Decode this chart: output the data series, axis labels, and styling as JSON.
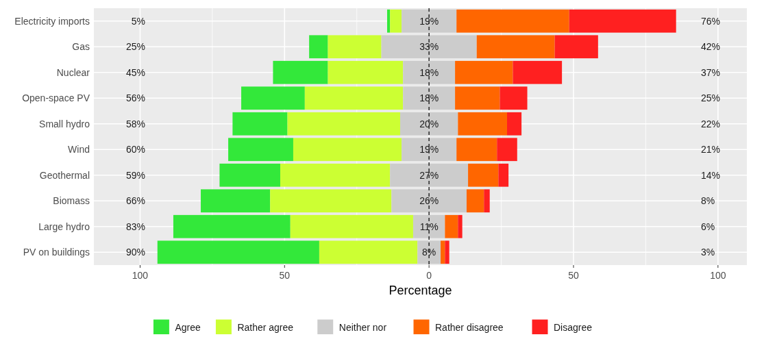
{
  "chart_data": {
    "type": "bar",
    "orientation": "horizontal",
    "xlabel": "Percentage",
    "categories": [
      "Electricity imports",
      "Gas",
      "Nuclear",
      "Open-space PV",
      "Small hydro",
      "Wind",
      "Geothermal",
      "Biomass",
      "Large hydro",
      "PV on buildings"
    ],
    "xlim": [
      -116,
      110
    ],
    "xticks": [
      {
        "value": -100,
        "label": "100"
      },
      {
        "value": -75,
        "label": null
      },
      {
        "value": -50,
        "label": "50"
      },
      {
        "value": -25,
        "label": null
      },
      0,
      {
        "value": 25,
        "label": null
      },
      50,
      {
        "value": 75,
        "label": null
      },
      100
    ],
    "grid": true,
    "legend": "bottom",
    "series": [
      {
        "name": "Agree",
        "color": "#33e83a",
        "base": [
          -14.5,
          -41.5,
          -54,
          -65,
          -68,
          -69.5,
          -72.5,
          -79,
          -88.5,
          -94
        ],
        "values": [
          1,
          6.5,
          19,
          22,
          19,
          22.5,
          21,
          24,
          40.5,
          56
        ]
      },
      {
        "name": "Rather agree",
        "color": "#ccff33",
        "base": [
          -13.5,
          -35,
          -35,
          -43,
          -49,
          -47,
          -51.5,
          -55,
          -48,
          -38
        ],
        "values": [
          4,
          18.5,
          26,
          34,
          39,
          37.5,
          38,
          42,
          42.5,
          34
        ]
      },
      {
        "name": "Neither nor",
        "color": "#cccccc",
        "base": [
          -9.5,
          -16.5,
          -9,
          -9,
          -10,
          -9.5,
          -13.5,
          -13,
          -5.5,
          -4
        ],
        "values": [
          19,
          33,
          18,
          18,
          20,
          19,
          27,
          26,
          11,
          8
        ],
        "value_labels": [
          "19%",
          "33%",
          "18%",
          "18%",
          "20%",
          "19%",
          "27%",
          "26%",
          "11%",
          "8%"
        ]
      },
      {
        "name": "Rather disagree",
        "color": "#ff6600",
        "base": [
          9.5,
          16.5,
          9,
          9,
          10,
          9.5,
          13.5,
          13,
          5.5,
          4
        ],
        "values": [
          39,
          27,
          20,
          15.5,
          17,
          14,
          10.5,
          6,
          4.5,
          1.5
        ]
      },
      {
        "name": "Disagree",
        "color": "#ff2020",
        "base": [
          48.5,
          43.5,
          29,
          24.5,
          27,
          23.5,
          24,
          19,
          10,
          5.5
        ],
        "values": [
          37,
          15,
          17,
          9.5,
          5,
          7,
          3.5,
          2,
          1.5,
          1.5
        ]
      }
    ],
    "ref_lines": [
      {
        "axis": "x",
        "value": 0,
        "color": "#333333",
        "line_style": "dashed"
      }
    ],
    "annotations": [
      "5%",
      "25%",
      "45%",
      "56%",
      "58%",
      "60%",
      "59%",
      "66%",
      "83%",
      "90%",
      "76%",
      "42%",
      "37%",
      "25%",
      "22%",
      "21%",
      "14%",
      "8%",
      "6%",
      "3%"
    ]
  }
}
